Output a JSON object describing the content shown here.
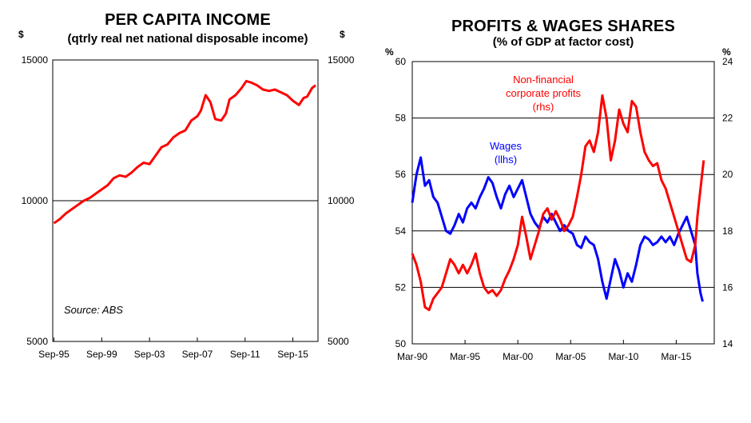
{
  "chart_data": [
    {
      "type": "line",
      "title": "PER CAPITA INCOME",
      "subtitle": "(qtrly real net national disposable income)",
      "y_unit_left": "$",
      "y_unit_right": "$",
      "ylim": [
        5000,
        15000
      ],
      "yticks": [
        "15000",
        "10000",
        "5000"
      ],
      "xticks": [
        "Sep-95",
        "Sep-99",
        "Sep-03",
        "Sep-07",
        "Sep-11",
        "Sep-15"
      ],
      "xlim": [
        1995.6,
        2017.8
      ],
      "source": "Source: ABS",
      "series": [
        {
          "name": "Per capita income",
          "color": "#ff0000",
          "points": [
            [
              1995.7,
              9200
            ],
            [
              1996.2,
              9350
            ],
            [
              1996.7,
              9550
            ],
            [
              1997.2,
              9700
            ],
            [
              1997.7,
              9850
            ],
            [
              1998.2,
              10000
            ],
            [
              1998.7,
              10100
            ],
            [
              1999.2,
              10250
            ],
            [
              1999.7,
              10400
            ],
            [
              2000.2,
              10550
            ],
            [
              2000.7,
              10800
            ],
            [
              2001.2,
              10900
            ],
            [
              2001.7,
              10850
            ],
            [
              2002.2,
              11000
            ],
            [
              2002.7,
              11200
            ],
            [
              2003.2,
              11350
            ],
            [
              2003.7,
              11300
            ],
            [
              2004.2,
              11600
            ],
            [
              2004.7,
              11900
            ],
            [
              2005.2,
              12000
            ],
            [
              2005.7,
              12250
            ],
            [
              2006.2,
              12400
            ],
            [
              2006.7,
              12500
            ],
            [
              2007.2,
              12850
            ],
            [
              2007.7,
              13000
            ],
            [
              2008.0,
              13200
            ],
            [
              2008.4,
              13750
            ],
            [
              2008.8,
              13500
            ],
            [
              2009.2,
              12900
            ],
            [
              2009.7,
              12850
            ],
            [
              2010.1,
              13100
            ],
            [
              2010.4,
              13600
            ],
            [
              2010.9,
              13750
            ],
            [
              2011.4,
              14000
            ],
            [
              2011.8,
              14250
            ],
            [
              2012.2,
              14200
            ],
            [
              2012.7,
              14100
            ],
            [
              2013.2,
              13950
            ],
            [
              2013.7,
              13900
            ],
            [
              2014.2,
              13950
            ],
            [
              2014.7,
              13850
            ],
            [
              2015.2,
              13750
            ],
            [
              2015.7,
              13550
            ],
            [
              2016.2,
              13400
            ],
            [
              2016.6,
              13650
            ],
            [
              2016.9,
              13700
            ],
            [
              2017.3,
              14000
            ],
            [
              2017.6,
              14100
            ]
          ]
        }
      ]
    },
    {
      "type": "line",
      "title": "PROFITS & WAGES SHARES",
      "subtitle": "(% of GDP at factor cost)",
      "y_unit_left": "%",
      "y_unit_right": "%",
      "ylim_left": [
        50,
        60
      ],
      "ylim_right": [
        14,
        24
      ],
      "yticks_left": [
        "60",
        "58",
        "56",
        "54",
        "52",
        "50"
      ],
      "yticks_right": [
        "24",
        "22",
        "20",
        "18",
        "16",
        "14"
      ],
      "xticks": [
        "Mar-90",
        "Mar-95",
        "Mar-00",
        "Mar-05",
        "Mar-10",
        "Mar-15"
      ],
      "xlim": [
        1990.0,
        2018.6
      ],
      "annotations": {
        "profits_label": [
          "Non-financial",
          "corporate profits",
          "(rhs)"
        ],
        "wages_label": [
          "Wages",
          "(llhs)"
        ]
      },
      "series": [
        {
          "name": "Wages (lhs)",
          "axis": "left",
          "color": "#0000ff",
          "points": [
            [
              1990.0,
              55.0
            ],
            [
              1990.4,
              56.0
            ],
            [
              1990.8,
              56.6
            ],
            [
              1991.2,
              55.6
            ],
            [
              1991.6,
              55.8
            ],
            [
              1992.0,
              55.2
            ],
            [
              1992.4,
              55.0
            ],
            [
              1992.8,
              54.5
            ],
            [
              1993.2,
              54.0
            ],
            [
              1993.6,
              53.9
            ],
            [
              1994.0,
              54.2
            ],
            [
              1994.4,
              54.6
            ],
            [
              1994.8,
              54.3
            ],
            [
              1995.2,
              54.8
            ],
            [
              1995.6,
              55.0
            ],
            [
              1996.0,
              54.8
            ],
            [
              1996.4,
              55.2
            ],
            [
              1996.8,
              55.5
            ],
            [
              1997.2,
              55.9
            ],
            [
              1997.6,
              55.7
            ],
            [
              1998.0,
              55.2
            ],
            [
              1998.4,
              54.8
            ],
            [
              1998.8,
              55.3
            ],
            [
              1999.2,
              55.6
            ],
            [
              1999.6,
              55.2
            ],
            [
              2000.0,
              55.5
            ],
            [
              2000.4,
              55.8
            ],
            [
              2000.8,
              55.2
            ],
            [
              2001.2,
              54.6
            ],
            [
              2001.6,
              54.3
            ],
            [
              2002.0,
              54.1
            ],
            [
              2002.4,
              54.5
            ],
            [
              2002.8,
              54.3
            ],
            [
              2003.2,
              54.6
            ],
            [
              2003.6,
              54.3
            ],
            [
              2004.0,
              54.0
            ],
            [
              2004.4,
              54.2
            ],
            [
              2004.8,
              54.0
            ],
            [
              2005.2,
              53.9
            ],
            [
              2005.6,
              53.5
            ],
            [
              2006.0,
              53.4
            ],
            [
              2006.4,
              53.8
            ],
            [
              2006.8,
              53.6
            ],
            [
              2007.2,
              53.5
            ],
            [
              2007.6,
              53.0
            ],
            [
              2008.0,
              52.2
            ],
            [
              2008.4,
              51.6
            ],
            [
              2008.8,
              52.3
            ],
            [
              2009.2,
              53.0
            ],
            [
              2009.6,
              52.6
            ],
            [
              2010.0,
              52.0
            ],
            [
              2010.4,
              52.5
            ],
            [
              2010.8,
              52.2
            ],
            [
              2011.2,
              52.8
            ],
            [
              2011.6,
              53.5
            ],
            [
              2012.0,
              53.8
            ],
            [
              2012.4,
              53.7
            ],
            [
              2012.8,
              53.5
            ],
            [
              2013.2,
              53.6
            ],
            [
              2013.6,
              53.8
            ],
            [
              2014.0,
              53.6
            ],
            [
              2014.4,
              53.8
            ],
            [
              2014.8,
              53.5
            ],
            [
              2015.2,
              53.9
            ],
            [
              2015.6,
              54.2
            ],
            [
              2016.0,
              54.5
            ],
            [
              2016.4,
              54.0
            ],
            [
              2016.8,
              53.5
            ],
            [
              2017.0,
              52.5
            ],
            [
              2017.3,
              51.8
            ],
            [
              2017.5,
              51.5
            ]
          ]
        },
        {
          "name": "Non-financial corporate profits (rhs)",
          "axis": "right",
          "color": "#ff0000",
          "points": [
            [
              1990.0,
              17.2
            ],
            [
              1990.4,
              16.8
            ],
            [
              1990.8,
              16.2
            ],
            [
              1991.2,
              15.3
            ],
            [
              1991.6,
              15.2
            ],
            [
              1992.0,
              15.6
            ],
            [
              1992.4,
              15.8
            ],
            [
              1992.8,
              16.0
            ],
            [
              1993.2,
              16.5
            ],
            [
              1993.6,
              17.0
            ],
            [
              1994.0,
              16.8
            ],
            [
              1994.4,
              16.5
            ],
            [
              1994.8,
              16.8
            ],
            [
              1995.2,
              16.5
            ],
            [
              1995.6,
              16.8
            ],
            [
              1996.0,
              17.2
            ],
            [
              1996.4,
              16.5
            ],
            [
              1996.8,
              16.0
            ],
            [
              1997.2,
              15.8
            ],
            [
              1997.6,
              15.9
            ],
            [
              1998.0,
              15.7
            ],
            [
              1998.4,
              15.9
            ],
            [
              1998.8,
              16.3
            ],
            [
              1999.2,
              16.6
            ],
            [
              1999.6,
              17.0
            ],
            [
              2000.0,
              17.5
            ],
            [
              2000.4,
              18.5
            ],
            [
              2000.8,
              17.8
            ],
            [
              2001.2,
              17.0
            ],
            [
              2001.6,
              17.5
            ],
            [
              2002.0,
              18.0
            ],
            [
              2002.4,
              18.6
            ],
            [
              2002.8,
              18.8
            ],
            [
              2003.2,
              18.4
            ],
            [
              2003.6,
              18.7
            ],
            [
              2004.0,
              18.4
            ],
            [
              2004.4,
              18.0
            ],
            [
              2004.8,
              18.2
            ],
            [
              2005.2,
              18.5
            ],
            [
              2005.6,
              19.2
            ],
            [
              2006.0,
              20.0
            ],
            [
              2006.4,
              21.0
            ],
            [
              2006.8,
              21.2
            ],
            [
              2007.2,
              20.8
            ],
            [
              2007.6,
              21.5
            ],
            [
              2008.0,
              22.8
            ],
            [
              2008.4,
              22.0
            ],
            [
              2008.8,
              20.5
            ],
            [
              2009.2,
              21.2
            ],
            [
              2009.6,
              22.3
            ],
            [
              2010.0,
              21.8
            ],
            [
              2010.4,
              21.5
            ],
            [
              2010.8,
              22.6
            ],
            [
              2011.2,
              22.4
            ],
            [
              2011.6,
              21.5
            ],
            [
              2012.0,
              20.8
            ],
            [
              2012.4,
              20.5
            ],
            [
              2012.8,
              20.3
            ],
            [
              2013.2,
              20.4
            ],
            [
              2013.6,
              19.8
            ],
            [
              2014.0,
              19.5
            ],
            [
              2014.4,
              19.0
            ],
            [
              2014.8,
              18.5
            ],
            [
              2015.2,
              18.0
            ],
            [
              2015.6,
              17.5
            ],
            [
              2016.0,
              17.0
            ],
            [
              2016.4,
              16.9
            ],
            [
              2016.8,
              17.5
            ],
            [
              2017.0,
              18.5
            ],
            [
              2017.3,
              19.5
            ],
            [
              2017.6,
              20.5
            ]
          ]
        }
      ]
    }
  ]
}
